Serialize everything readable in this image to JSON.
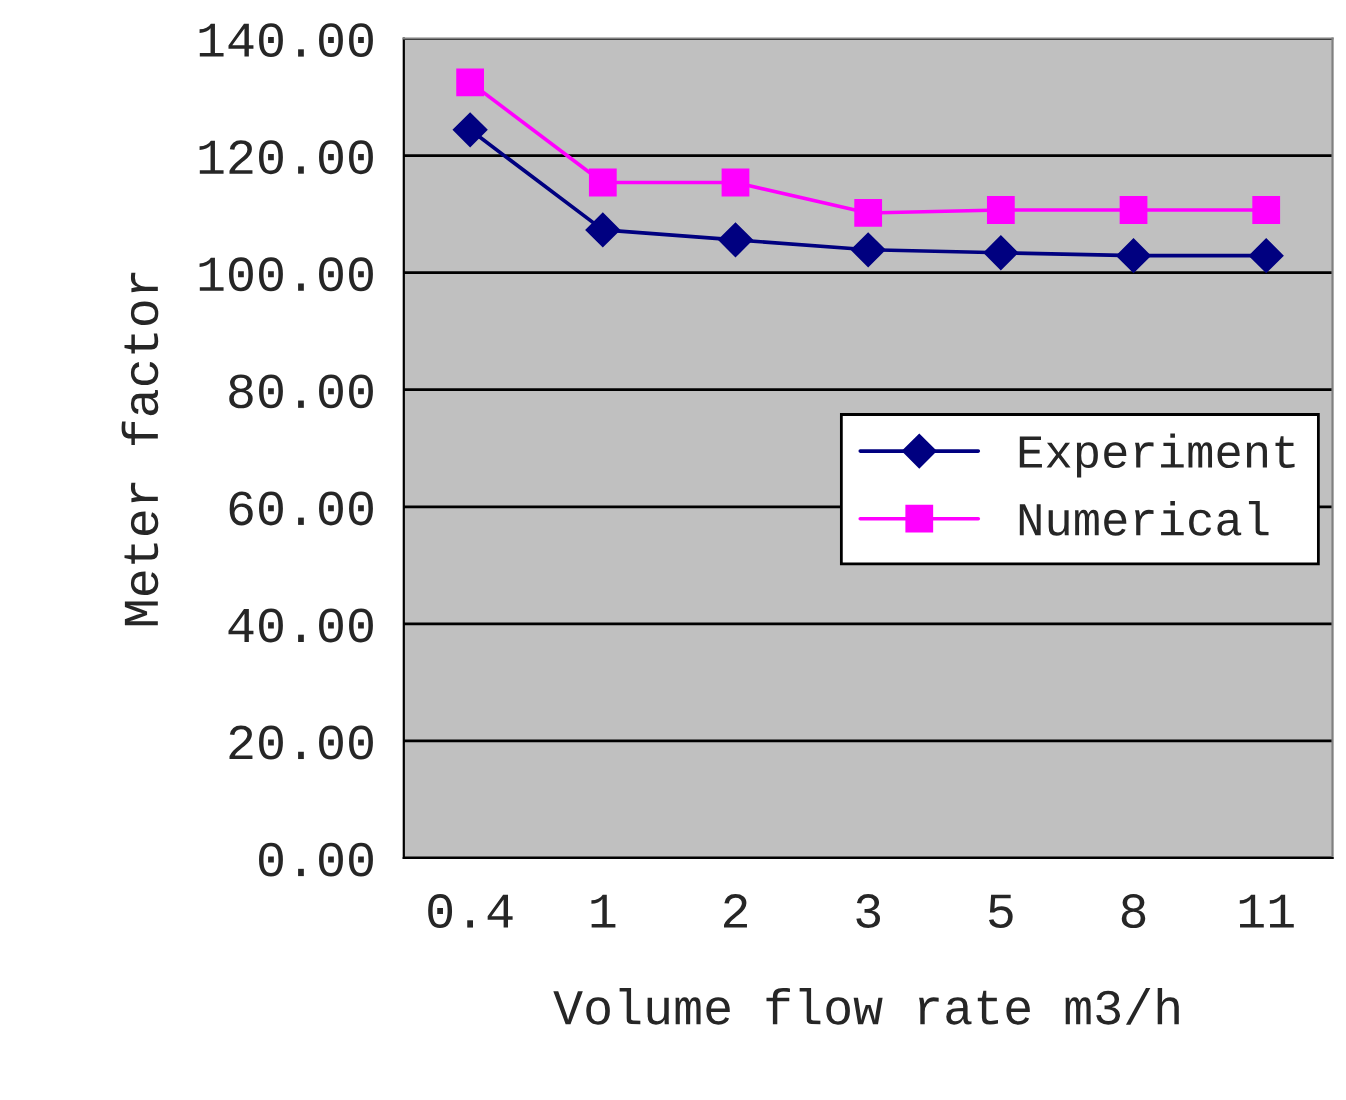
{
  "chart_data": {
    "type": "line",
    "xlabel": "Volume flow rate m3/h",
    "ylabel": "Meter factor",
    "categories": [
      "0.4",
      "1",
      "2",
      "3",
      "5",
      "8",
      "11"
    ],
    "series": [
      {
        "name": "Experiment",
        "color": "#000080",
        "marker": "diamond",
        "values": [
          124.4,
          107.3,
          105.6,
          103.9,
          103.4,
          102.9,
          102.9
        ]
      },
      {
        "name": "Numerical",
        "color": "#ff00ff",
        "marker": "square",
        "values": [
          132.5,
          115.4,
          115.4,
          110.2,
          110.7,
          110.7,
          110.7
        ]
      }
    ],
    "ylim": [
      0,
      140
    ],
    "yticks": [
      {
        "value": 0,
        "label": "0.00"
      },
      {
        "value": 20,
        "label": "20.00"
      },
      {
        "value": 40,
        "label": "40.00"
      },
      {
        "value": 60,
        "label": "60.00"
      },
      {
        "value": 80,
        "label": "80.00"
      },
      {
        "value": 100,
        "label": "100.00"
      },
      {
        "value": 120,
        "label": "120.00"
      },
      {
        "value": 140,
        "label": "140.00"
      }
    ],
    "grid": "y",
    "legend": "right",
    "line_style": "solid"
  }
}
